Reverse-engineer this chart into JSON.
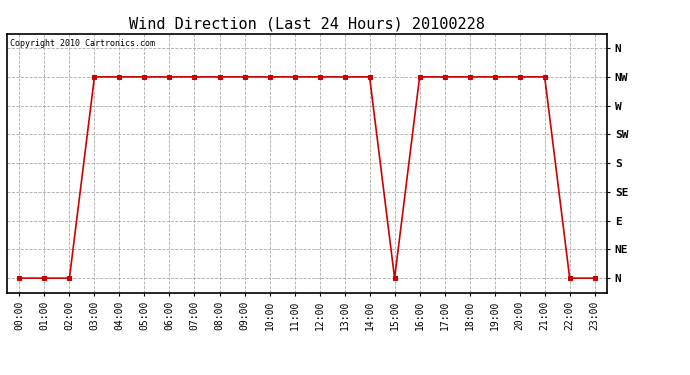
{
  "title": "Wind Direction (Last 24 Hours) 20100228",
  "copyright_text": "Copyright 2010 Cartronics.com",
  "background_color": "#ffffff",
  "line_color": "#cc0000",
  "grid_color": "#aaaaaa",
  "x_labels": [
    "00:00",
    "01:00",
    "02:00",
    "03:00",
    "04:00",
    "05:00",
    "06:00",
    "07:00",
    "08:00",
    "09:00",
    "10:00",
    "11:00",
    "12:00",
    "13:00",
    "14:00",
    "15:00",
    "16:00",
    "17:00",
    "18:00",
    "19:00",
    "20:00",
    "21:00",
    "22:00",
    "23:00"
  ],
  "y_labels": [
    "N",
    "NE",
    "E",
    "SE",
    "S",
    "SW",
    "W",
    "NW",
    "N"
  ],
  "y_values": [
    0,
    1,
    2,
    3,
    4,
    5,
    6,
    7,
    8
  ],
  "wind_data": [
    0,
    0,
    0,
    7,
    7,
    7,
    7,
    7,
    7,
    7,
    7,
    7,
    7,
    7,
    7,
    0,
    7,
    7,
    7,
    7,
    7,
    7,
    0,
    0
  ],
  "marker": "s",
  "marker_size": 3,
  "line_width": 1.2,
  "title_fontsize": 11,
  "tick_fontsize": 7,
  "ylabel_fontsize": 8,
  "copyright_fontsize": 6
}
